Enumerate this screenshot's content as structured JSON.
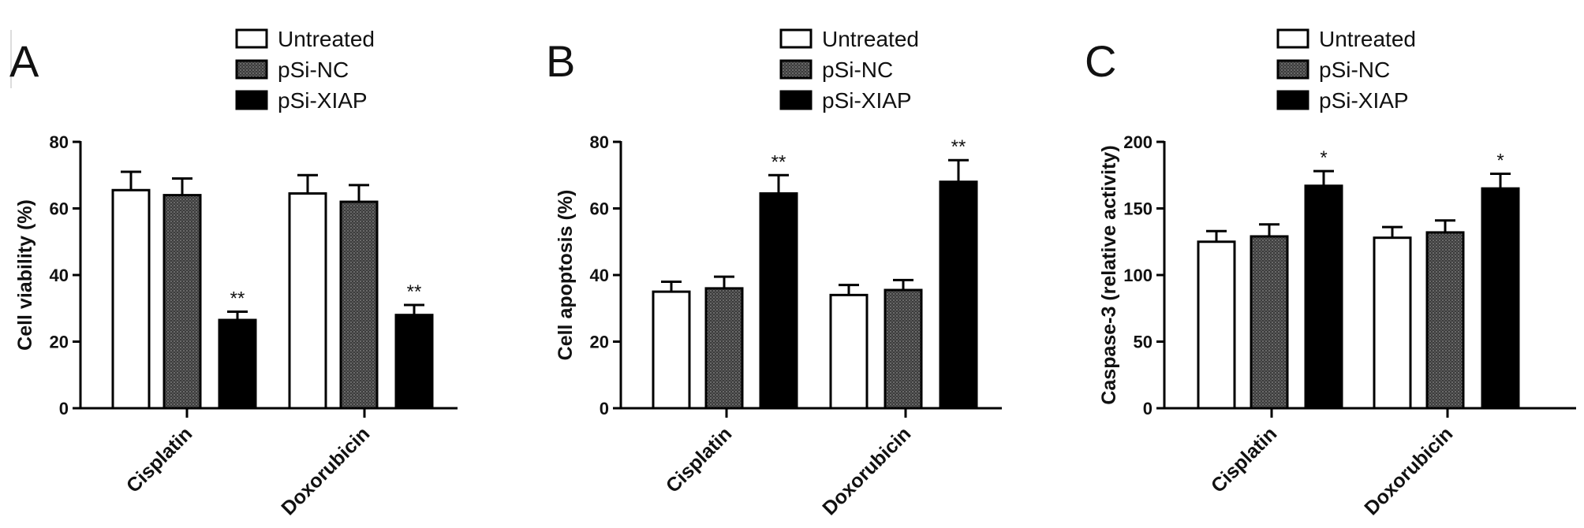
{
  "legend": [
    "Untreated",
    "pSi-NC",
    "pSi-XIAP"
  ],
  "colors": {
    "Untreated": "#ffffff",
    "pSi-NC": "#4a4a4a",
    "pSi-XIAP": "#000000",
    "outline": "#000000"
  },
  "chart_data": [
    {
      "type": "bar",
      "panel": "A",
      "categories": [
        "Cisplatin",
        "Doxorubicin"
      ],
      "ylabel": "Cell viability (%)",
      "ylim": [
        0,
        80
      ],
      "yticks": [
        0,
        20,
        40,
        60,
        80
      ],
      "series": [
        {
          "name": "Untreated",
          "values": [
            65.5,
            64.5
          ],
          "errors": [
            5.5,
            5.5
          ],
          "sig": [
            "",
            ""
          ]
        },
        {
          "name": "pSi-NC",
          "values": [
            64,
            62
          ],
          "errors": [
            5,
            5
          ],
          "sig": [
            "",
            ""
          ]
        },
        {
          "name": "pSi-XIAP",
          "values": [
            26.5,
            28
          ],
          "errors": [
            2.5,
            3
          ],
          "sig": [
            "**",
            "**"
          ]
        }
      ]
    },
    {
      "type": "bar",
      "panel": "B",
      "categories": [
        "Cisplatin",
        "Doxorubicin"
      ],
      "ylabel": "Cell apoptosis (%)",
      "ylim": [
        0,
        80
      ],
      "yticks": [
        0,
        20,
        40,
        60,
        80
      ],
      "series": [
        {
          "name": "Untreated",
          "values": [
            35,
            34
          ],
          "errors": [
            3,
            3
          ],
          "sig": [
            "",
            ""
          ]
        },
        {
          "name": "pSi-NC",
          "values": [
            36,
            35.5
          ],
          "errors": [
            3.5,
            3
          ],
          "sig": [
            "",
            ""
          ]
        },
        {
          "name": "pSi-XIAP",
          "values": [
            64.5,
            68
          ],
          "errors": [
            5.5,
            6.5
          ],
          "sig": [
            "**",
            "**"
          ]
        }
      ]
    },
    {
      "type": "bar",
      "panel": "C",
      "categories": [
        "Cisplatin",
        "Doxorubicin"
      ],
      "ylabel": "Caspase-3 (relative activity)",
      "ylim": [
        0,
        200
      ],
      "yticks": [
        0,
        50,
        100,
        150,
        200
      ],
      "series": [
        {
          "name": "Untreated",
          "values": [
            125,
            128
          ],
          "errors": [
            8,
            8
          ],
          "sig": [
            "",
            ""
          ]
        },
        {
          "name": "pSi-NC",
          "values": [
            129,
            132
          ],
          "errors": [
            9,
            9
          ],
          "sig": [
            "",
            ""
          ]
        },
        {
          "name": "pSi-XIAP",
          "values": [
            167,
            165
          ],
          "errors": [
            11,
            11
          ],
          "sig": [
            "*",
            "*"
          ]
        }
      ]
    }
  ]
}
